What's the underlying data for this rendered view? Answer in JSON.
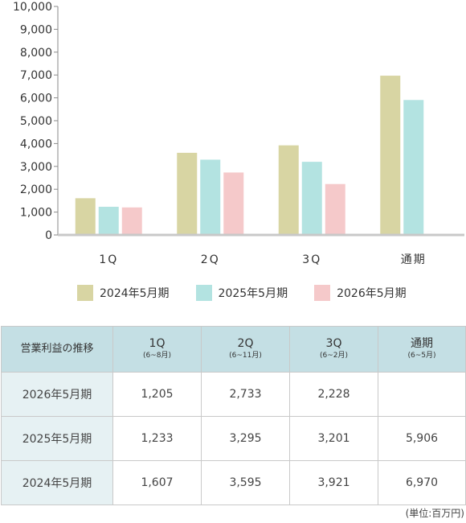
{
  "chart_data": {
    "type": "bar",
    "categories": [
      "1Q",
      "2Q",
      "3Q",
      "通期"
    ],
    "category_labels": [
      "1Q",
      "2Q",
      "3Q",
      "通期"
    ],
    "series": [
      {
        "name": "2024年5月期",
        "values": [
          1607,
          3595,
          3921,
          6970
        ],
        "color": "#d8d5a3"
      },
      {
        "name": "2025年5月期",
        "values": [
          1233,
          3295,
          3201,
          5906
        ],
        "color": "#b3e3e1"
      },
      {
        "name": "2026年5月期",
        "values": [
          1205,
          2733,
          2228,
          null
        ],
        "color": "#f5c9ca"
      }
    ],
    "y_ticks": [
      "0",
      "1,000",
      "2,000",
      "3,000",
      "4,000",
      "5,000",
      "6,000",
      "7,000",
      "8,000",
      "9,000",
      "10,000"
    ],
    "ylim": [
      0,
      10000
    ],
    "grid": false,
    "legend_position": "bottom"
  },
  "table": {
    "corner": "営業利益の推移",
    "columns": [
      {
        "label": "1Q",
        "sub": "(6~8月)"
      },
      {
        "label": "2Q",
        "sub": "(6~11月)"
      },
      {
        "label": "3Q",
        "sub": "(6~2月)"
      },
      {
        "label": "通期",
        "sub": "(6~5月)"
      }
    ],
    "rows": [
      {
        "label": "2026年5月期",
        "values": [
          "1,205",
          "2,733",
          "2,228",
          ""
        ]
      },
      {
        "label": "2025年5月期",
        "values": [
          "1,233",
          "3,295",
          "3,201",
          "5,906"
        ]
      },
      {
        "label": "2024年5月期",
        "values": [
          "1,607",
          "3,595",
          "3,921",
          "6,970"
        ]
      }
    ]
  },
  "unit_note": "(単位:百万円)"
}
